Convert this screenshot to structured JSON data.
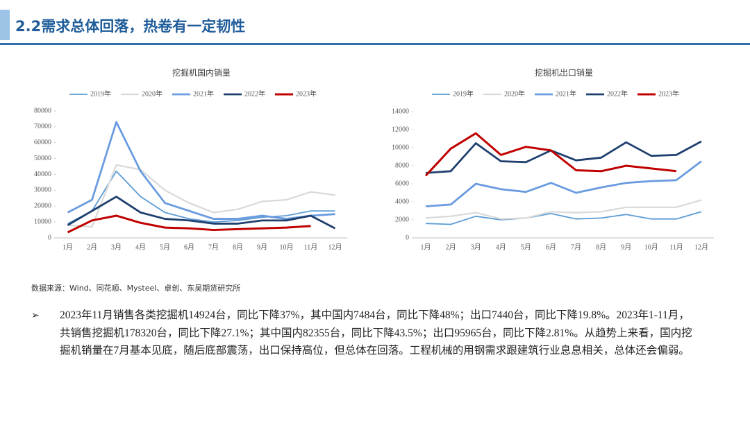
{
  "header": {
    "title": "2.2需求总体回落，热卷有一定韧性"
  },
  "chart_data": [
    {
      "type": "line",
      "title": "挖掘机国内销量",
      "categories": [
        "1月",
        "2月",
        "3月",
        "4月",
        "5月",
        "6月",
        "7月",
        "8月",
        "9月",
        "10月",
        "11月",
        "12月"
      ],
      "ylim": [
        0,
        80000
      ],
      "yticks": [
        0,
        10000,
        20000,
        30000,
        40000,
        50000,
        60000,
        70000,
        80000
      ],
      "grid": false,
      "legend": "top",
      "series": [
        {
          "name": "2019年",
          "color": "#5b9bd5",
          "values": [
            9000,
            17000,
            42000,
            26000,
            16000,
            12000,
            10000,
            11000,
            13000,
            14000,
            17000,
            17000
          ]
        },
        {
          "name": "2020年",
          "color": "#d9d9d9",
          "values": [
            8000,
            7000,
            46000,
            43000,
            30000,
            22000,
            16000,
            18000,
            23000,
            24000,
            29000,
            27000
          ]
        },
        {
          "name": "2021年",
          "color": "#6a9be0",
          "values": [
            16000,
            24000,
            73000,
            42000,
            22000,
            17000,
            12000,
            12000,
            14000,
            12000,
            14000,
            15000
          ]
        },
        {
          "name": "2022年",
          "color": "#1f3f6e",
          "values": [
            8000,
            17000,
            26000,
            16000,
            12000,
            11000,
            9000,
            9000,
            11000,
            11000,
            14000,
            6000
          ]
        },
        {
          "name": "2023年",
          "color": "#c00000",
          "values": [
            3500,
            11000,
            14000,
            9500,
            6500,
            6000,
            5000,
            5500,
            6000,
            6500,
            7500,
            null
          ]
        }
      ]
    },
    {
      "type": "line",
      "title": "挖掘机出口销量",
      "categories": [
        "1月",
        "2月",
        "3月",
        "4月",
        "5月",
        "6月",
        "7月",
        "8月",
        "9月",
        "10月",
        "11月",
        "12月"
      ],
      "ylim": [
        0,
        14000
      ],
      "yticks": [
        0,
        2000,
        4000,
        6000,
        8000,
        10000,
        12000,
        14000
      ],
      "grid": false,
      "legend": "top",
      "series": [
        {
          "name": "2019年",
          "color": "#5b9bd5",
          "values": [
            1600,
            1500,
            2400,
            2000,
            2200,
            2700,
            2100,
            2200,
            2600,
            2100,
            2100,
            2900
          ]
        },
        {
          "name": "2020年",
          "color": "#d9d9d9",
          "values": [
            2200,
            2400,
            2800,
            2100,
            2200,
            2900,
            2800,
            2900,
            3400,
            3400,
            3400,
            4200
          ]
        },
        {
          "name": "2021年",
          "color": "#6a9be0",
          "values": [
            3500,
            3700,
            6000,
            5400,
            5100,
            6100,
            5000,
            5600,
            6100,
            6300,
            6400,
            8500
          ]
        },
        {
          "name": "2022年",
          "color": "#1f3f6e",
          "values": [
            7200,
            7400,
            10500,
            8500,
            8400,
            9700,
            8600,
            8900,
            10600,
            9100,
            9200,
            10700
          ]
        },
        {
          "name": "2023年",
          "color": "#c00000",
          "values": [
            6900,
            9900,
            11600,
            9200,
            10100,
            9700,
            7500,
            7400,
            8000,
            7700,
            7400,
            null
          ]
        }
      ]
    }
  ],
  "source": "数据来源：Wind、同花顺、Mysteel、卓创、东吴期货研究所",
  "bullet": "➢",
  "body": "2023年11月销售各类挖掘机14924台，同比下降37%，其中国内7484台，同比下降48%；出口7440台，同比下降19.8%。2023年1-11月，共销售挖掘机178320台，同比下降27.1%；其中国内82355台，同比下降43.5%；出口95965台，同比下降2.81%。从趋势上来看，国内挖掘机销量在7月基本见底，随后底部震荡，出口保持高位，但总体在回落。工程机械的用钢需求跟建筑行业息息相关，总体还会偏弱。"
}
